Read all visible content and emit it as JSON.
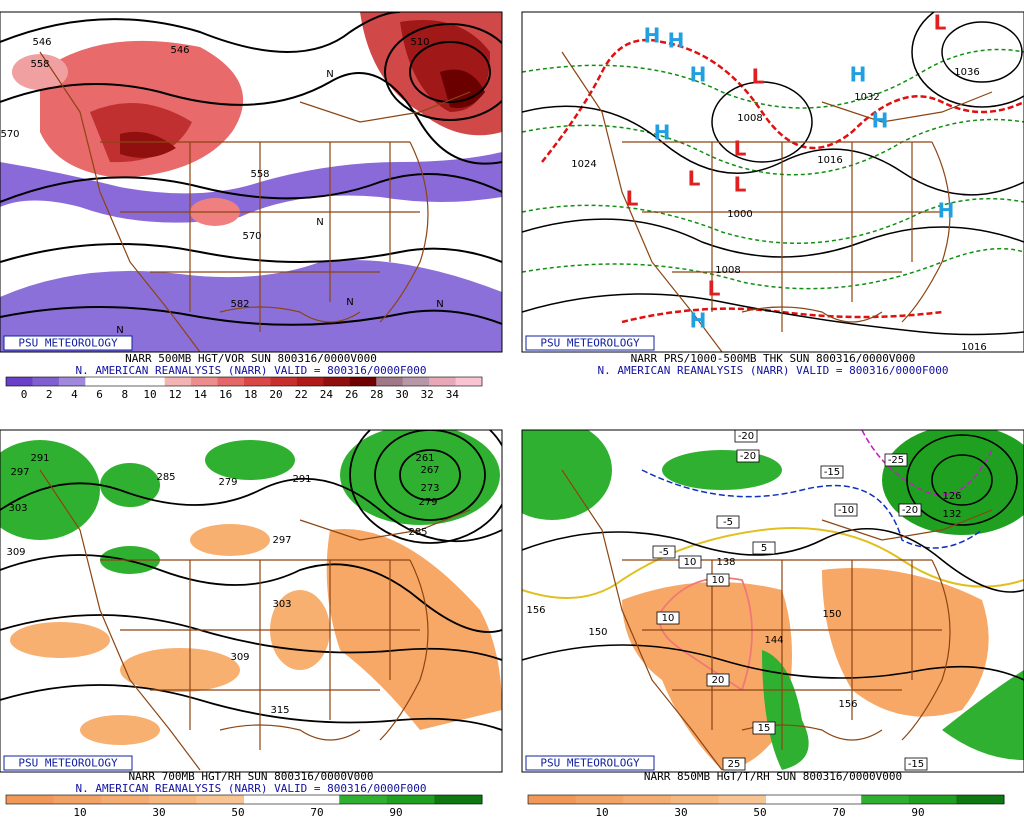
{
  "panels": [
    {
      "badge": "PSU METEOROLOGY",
      "caption": "NARR 500MB HGT/VOR SUN 800316/0000V000",
      "valid": "N. AMERICAN REANALYSIS (NARR) VALID = 800316/0000F000",
      "colorbar": {
        "labels": [
          0,
          2,
          4,
          6,
          8,
          10,
          12,
          14,
          16,
          18,
          20,
          22,
          24,
          26,
          28,
          30,
          32,
          34
        ],
        "colors": [
          "#6a40c8",
          "#8060d0",
          "#a088dc",
          "#ffffff",
          "#ffffff",
          "#ffffff",
          "#f4b4b4",
          "#ec8c8c",
          "#e46868",
          "#d84848",
          "#c83030",
          "#b01c1c",
          "#901010",
          "#700000",
          "#a07888",
          "#b898a8",
          "#e8a8b8",
          "#f8c4d4"
        ]
      },
      "map_labels": [
        "546",
        "558",
        "570",
        "546",
        "558",
        "570",
        "582",
        "510",
        "N",
        "N",
        "N",
        "N",
        "N"
      ]
    },
    {
      "badge": "PSU METEOROLOGY",
      "caption": "NARR PRS/1000-500MB THK SUN 800316/0000V000",
      "valid": "N. AMERICAN REANALYSIS (NARR) VALID = 800316/0000F000",
      "map_labels": [
        "1024",
        "1000",
        "1008",
        "1008",
        "1016",
        "1032",
        "1036",
        "1016",
        "H",
        "H",
        "H",
        "H",
        "H",
        "H",
        "H",
        "H",
        "L",
        "L",
        "L",
        "L",
        "L",
        "L",
        "L"
      ]
    },
    {
      "badge": "PSU METEOROLOGY",
      "caption": "NARR 700MB HGT/RH SUN 800316/0000V000",
      "valid": "N. AMERICAN REANALYSIS (NARR) VALID = 800316/0000F000",
      "colorbar": {
        "labels": [
          10,
          30,
          50,
          70,
          90
        ],
        "colors": [
          "#f09858",
          "#f2a264",
          "#f4ac72",
          "#f6b880",
          "#f8c494",
          "#ffffff",
          "#ffffff",
          "#30b030",
          "#20a020",
          "#107810"
        ]
      },
      "map_labels": [
        "291",
        "297",
        "303",
        "309",
        "285",
        "279",
        "291",
        "297",
        "303",
        "309",
        "315",
        "285",
        "279",
        "273",
        "267",
        "261"
      ]
    },
    {
      "badge": "PSU METEOROLOGY",
      "caption": "NARR 850MB HGT/T/RH SUN 800316/0000V000",
      "colorbar": {
        "labels": [
          10,
          30,
          50,
          70,
          90
        ],
        "colors": [
          "#f09858",
          "#f2a264",
          "#f4ac72",
          "#f6b880",
          "#f8c494",
          "#ffffff",
          "#ffffff",
          "#30b030",
          "#20a020",
          "#107810"
        ]
      },
      "map_labels": [
        "-20",
        "-20",
        "-25",
        "-15",
        "-10",
        "-20",
        "-5",
        "-5",
        "5",
        "10",
        "10",
        "10",
        "20",
        "15",
        "25",
        "-15",
        "156",
        "150",
        "138",
        "144",
        "150",
        "156",
        "132",
        "126"
      ]
    }
  ]
}
